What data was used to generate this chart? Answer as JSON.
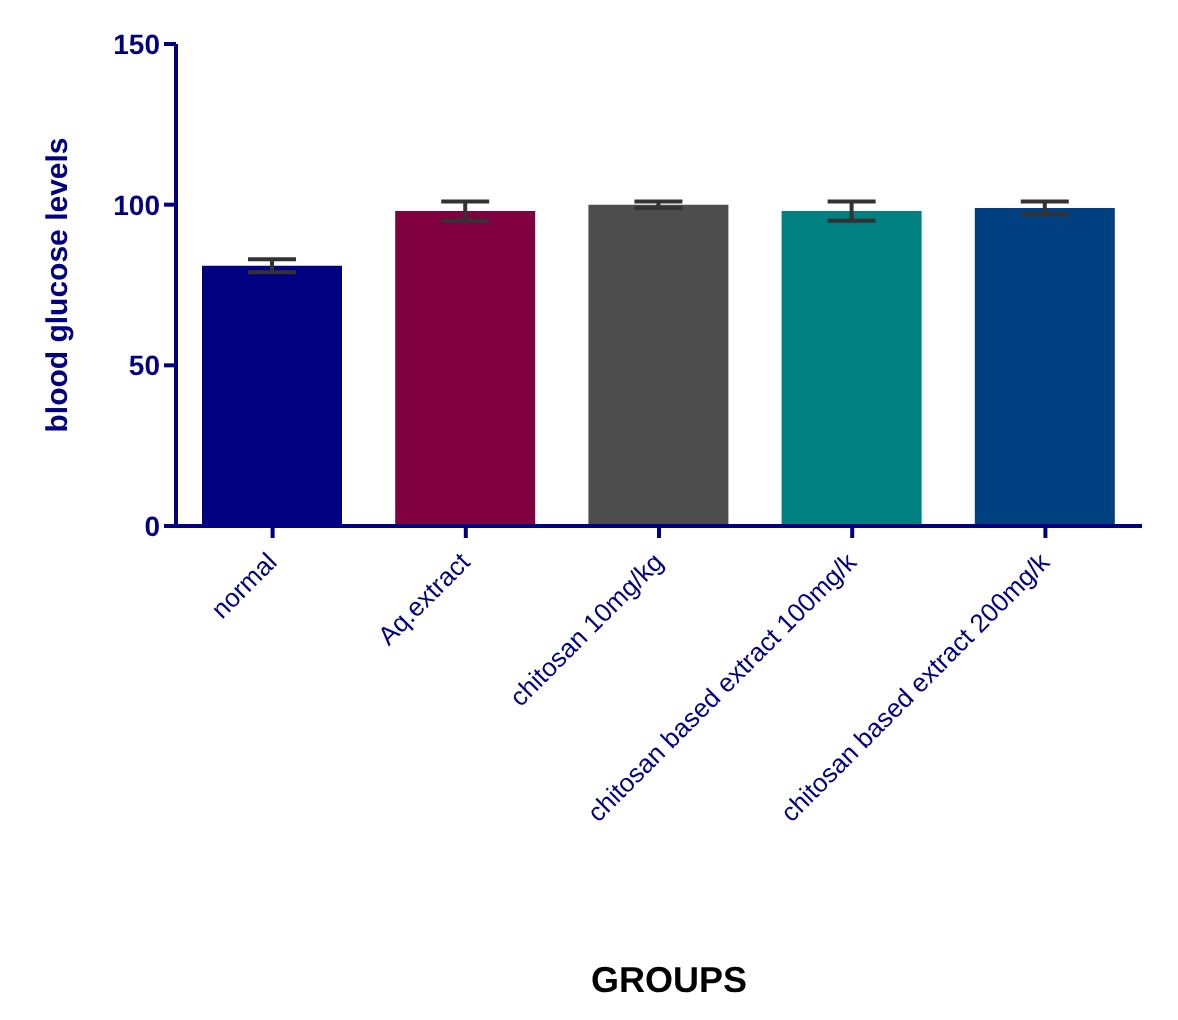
{
  "chart_data": {
    "type": "bar",
    "xlabel": "GROUPS",
    "ylabel": "blood glucose levels",
    "categories": [
      "normal",
      "Aq.extract",
      "chitosan 10mg/kg",
      "chitosan based extract 100mg/k",
      "chitosan based extract 200mg/k"
    ],
    "values": [
      81,
      98,
      100,
      98,
      99
    ],
    "errors": [
      2,
      3,
      1,
      3,
      2
    ],
    "colors": [
      "#000080",
      "#800040",
      "#4d4d4d",
      "#008080",
      "#004080"
    ],
    "ylim": [
      0,
      150
    ],
    "yticks": [
      0,
      50,
      100,
      150
    ],
    "grid": false
  }
}
